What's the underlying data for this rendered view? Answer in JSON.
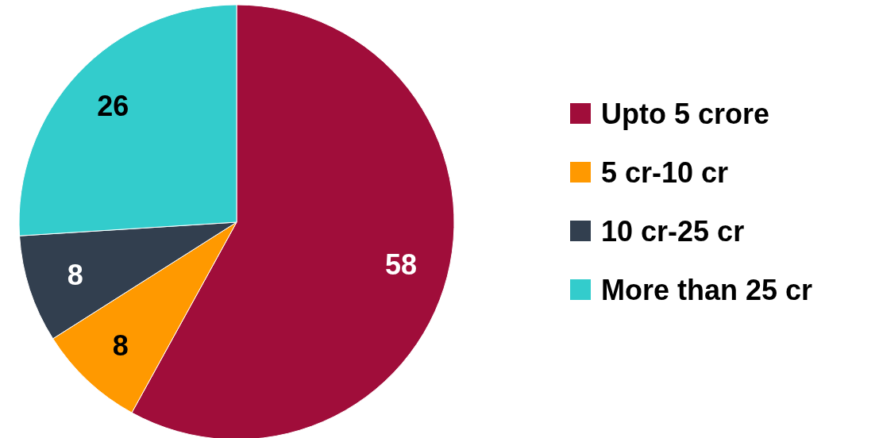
{
  "chart_data": {
    "type": "pie",
    "categories": [
      "Upto 5 crore",
      "5 cr-10 cr",
      "10 cr-25 cr",
      "More than 25 cr"
    ],
    "values": [
      58,
      8,
      8,
      26
    ],
    "colors": [
      "#a00d3a",
      "#ff9900",
      "#323f4f",
      "#33cccc"
    ],
    "data_labels": true,
    "legend": "right"
  }
}
